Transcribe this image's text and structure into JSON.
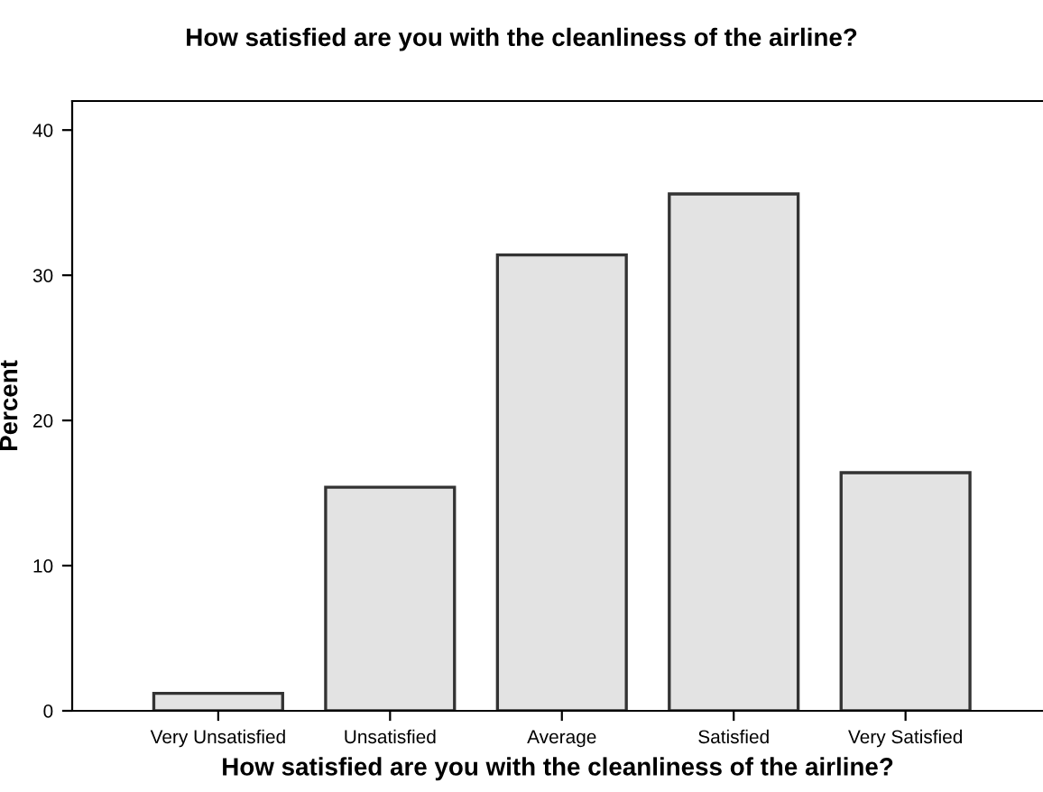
{
  "chart_data": {
    "type": "bar",
    "title": "How satisfied are you with the cleanliness of the airline?",
    "xlabel": "How satisfied are you with the cleanliness of the airline?",
    "ylabel": "Percent",
    "categories": [
      "Very Unsatisfied",
      "Unsatisfied",
      "Average",
      "Satisfied",
      "Very Satisfied"
    ],
    "values": [
      1.2,
      15.4,
      31.4,
      35.6,
      16.4
    ],
    "color": "#e3e3e3",
    "ylim": [
      0,
      42
    ],
    "yticks": [
      0,
      10,
      20,
      30,
      40
    ],
    "grid": false
  }
}
